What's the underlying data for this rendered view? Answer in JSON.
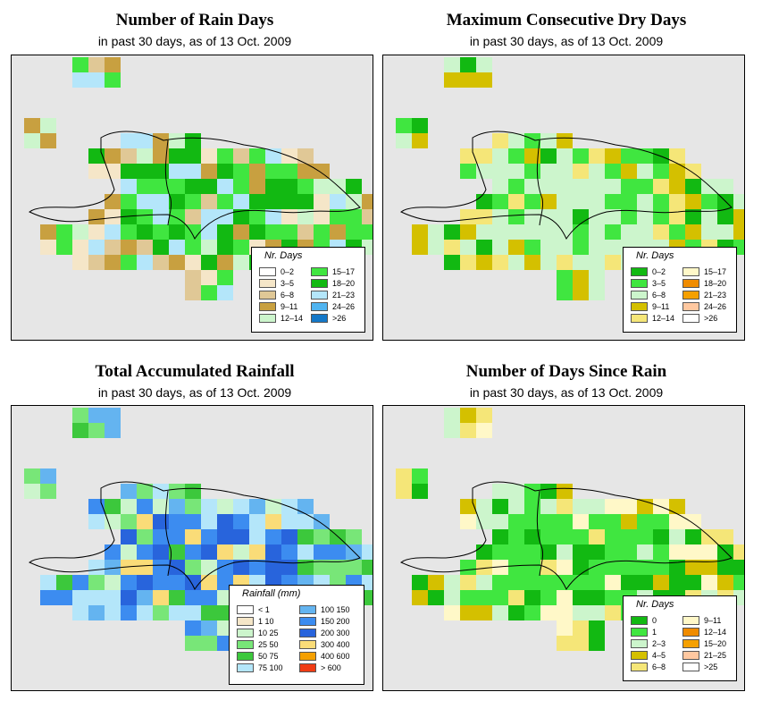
{
  "panels": [
    {
      "id": "rain_days",
      "title": "Number of Rain Days",
      "subtitle": "in past 30 days, as of  13 Oct. 2009",
      "legend_title": "Nr. Days",
      "legend": [
        {
          "label": "0–2",
          "color": "#ffffff"
        },
        {
          "label": "3–5",
          "color": "#f5e6c8"
        },
        {
          "label": "6–8",
          "color": "#e0c896"
        },
        {
          "label": "9–11",
          "color": "#c8a040"
        },
        {
          "label": "12–14",
          "color": "#ccf5cc"
        },
        {
          "label": "15–17",
          "color": "#40e640"
        },
        {
          "label": "18–20",
          "color": "#12b912"
        },
        {
          "label": "21–23",
          "color": "#b4e6fa"
        },
        {
          "label": "24–26",
          "color": "#50b4f0"
        },
        {
          "label": ">26",
          "color": "#1478c8"
        }
      ]
    },
    {
      "id": "dry_days",
      "title": "Maximum Consecutive Dry Days",
      "subtitle": "in past 30 days, as of  13 Oct. 2009",
      "legend_title": "Nr. Days",
      "legend": [
        {
          "label": "0–2",
          "color": "#12b912"
        },
        {
          "label": "3–5",
          "color": "#40e640"
        },
        {
          "label": "6–8",
          "color": "#ccf5cc"
        },
        {
          "label": "9–11",
          "color": "#d4c000"
        },
        {
          "label": "12–14",
          "color": "#f5e678"
        },
        {
          "label": "15–17",
          "color": "#fff8c8"
        },
        {
          "label": "18–20",
          "color": "#f08c00"
        },
        {
          "label": "21–23",
          "color": "#f5a000"
        },
        {
          "label": "24–26",
          "color": "#ffc8a0"
        },
        {
          "label": ">26",
          "color": "#ffffff"
        }
      ]
    },
    {
      "id": "rainfall",
      "title": "Total Accumulated Rainfall",
      "subtitle": "in past 30 days, as of  13 Oct. 2009",
      "legend_title": "Rainfall (mm)",
      "legend": [
        {
          "label": "< 1",
          "color": "#ffffff"
        },
        {
          "label": "1   10",
          "color": "#f5e6c8"
        },
        {
          "label": "10   25",
          "color": "#ccf5cc"
        },
        {
          "label": "25   50",
          "color": "#78e678"
        },
        {
          "label": "50   75",
          "color": "#3cc83c"
        },
        {
          "label": "75  100",
          "color": "#b4e6fa"
        },
        {
          "label": "100  150",
          "color": "#64b4f0"
        },
        {
          "label": "150  200",
          "color": "#3c8cf0"
        },
        {
          "label": "200  300",
          "color": "#2864dc"
        },
        {
          "label": "300  400",
          "color": "#fadc78"
        },
        {
          "label": "400  600",
          "color": "#f5a000"
        },
        {
          "label": "> 600",
          "color": "#f03c14"
        }
      ]
    },
    {
      "id": "since_rain",
      "title": "Number of Days Since Rain",
      "subtitle": "in past 30 days, as of  13 Oct. 2009",
      "legend_title": "Nr. Days",
      "legend": [
        {
          "label": "0",
          "color": "#12b912"
        },
        {
          "label": "1",
          "color": "#40e640"
        },
        {
          "label": "2–3",
          "color": "#ccf5cc"
        },
        {
          "label": "4–5",
          "color": "#d4c000"
        },
        {
          "label": "6–8",
          "color": "#f5e678"
        },
        {
          "label": "9–11",
          "color": "#fff8c8"
        },
        {
          "label": "12–14",
          "color": "#f08c00"
        },
        {
          "label": "15–20",
          "color": "#f5a000"
        },
        {
          "label": "21–25",
          "color": "#ffc8a0"
        },
        {
          "label": ">25",
          "color": "#ffffff"
        }
      ]
    }
  ]
}
